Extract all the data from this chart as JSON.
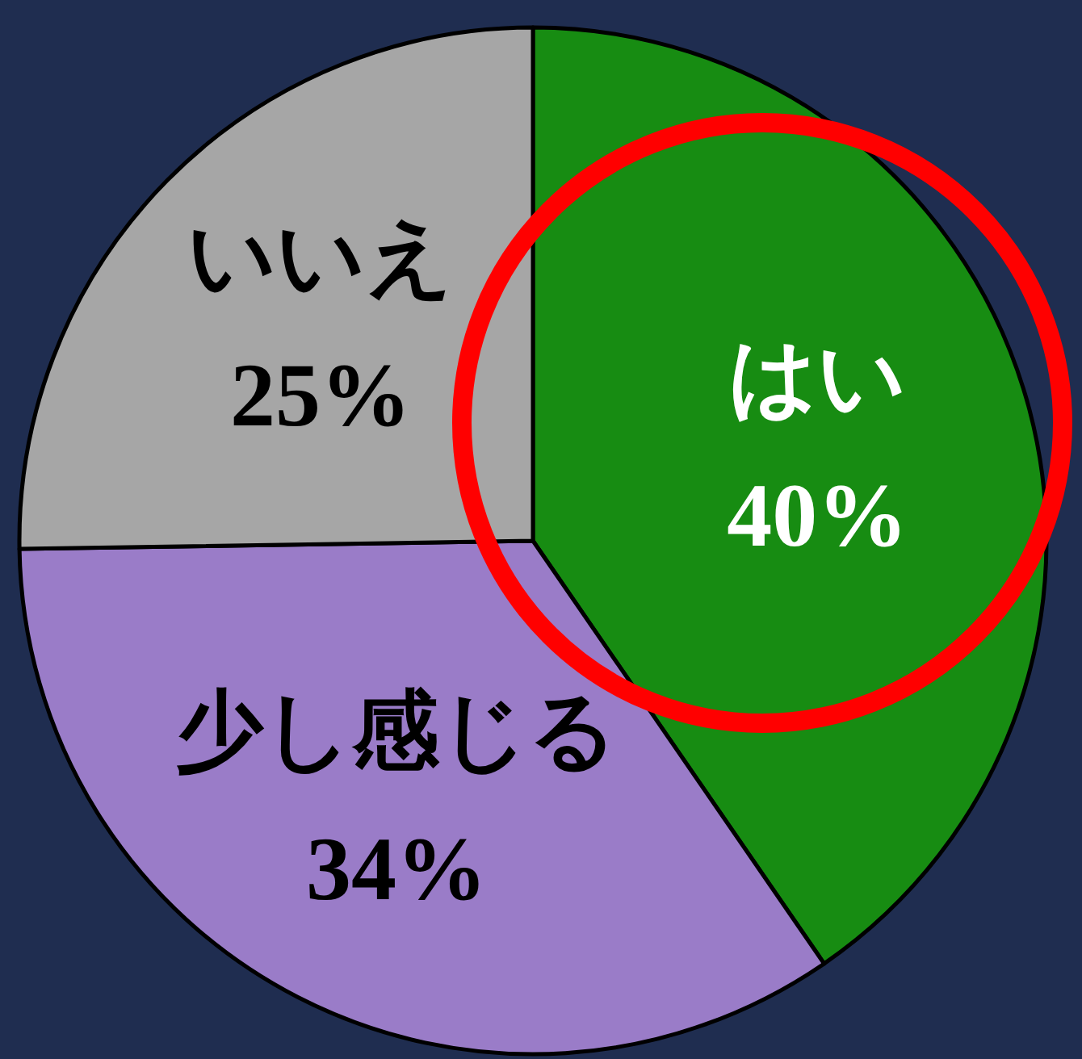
{
  "chart_data": {
    "type": "pie",
    "categories": [
      "はい",
      "少し感じる",
      "いいえ"
    ],
    "values": [
      40,
      34,
      25
    ],
    "colors": [
      "#178c12",
      "#9a7cc8",
      "#a6a6a6"
    ],
    "value_labels": [
      "40%",
      "34%",
      "25%"
    ]
  }
}
